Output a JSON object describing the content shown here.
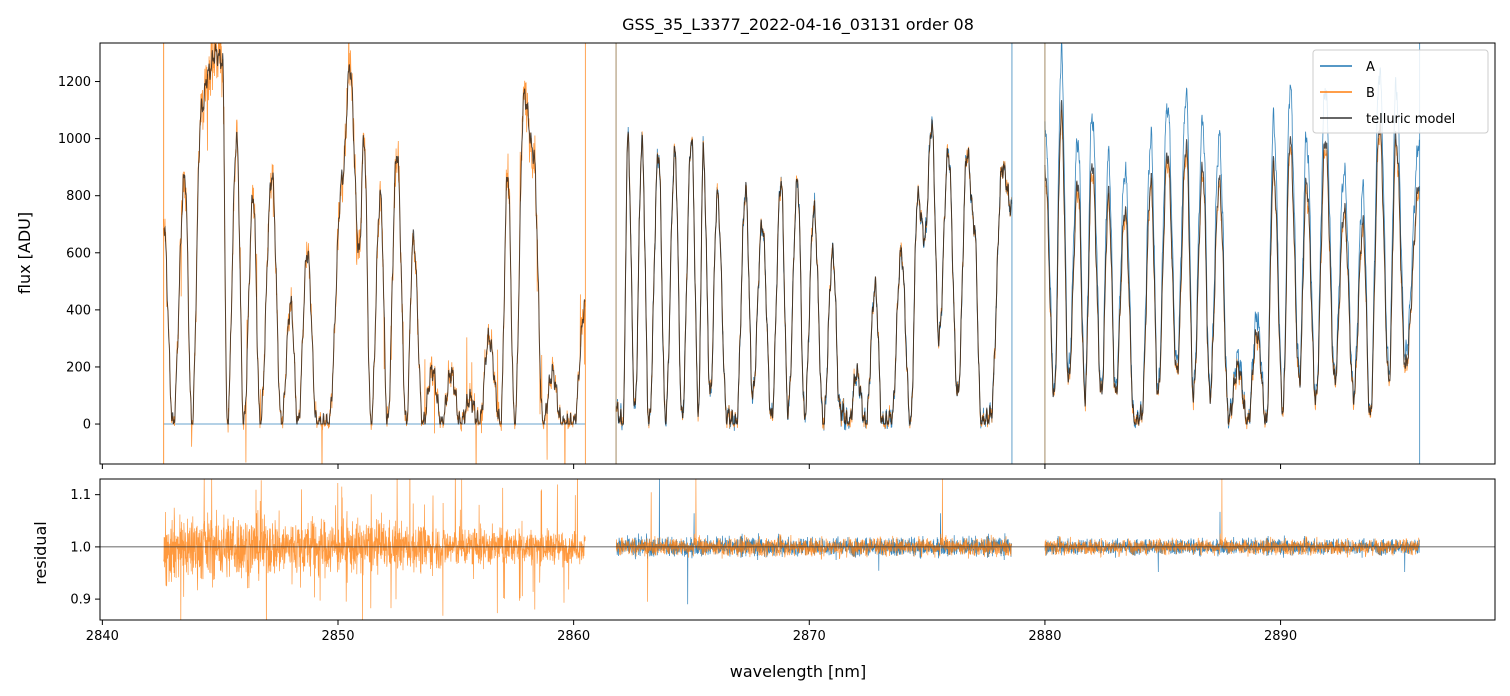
{
  "chart_data": [
    {
      "type": "line",
      "panel": "top",
      "title": "GSS_35_L3377_2022-04-16_03131  order 08",
      "xlabel": "",
      "ylabel": "flux [ADU]",
      "xlim": [
        2839.9,
        2899.1
      ],
      "ylim": [
        -140,
        1335
      ],
      "x_ticks": [
        2840,
        2850,
        2860,
        2870,
        2880,
        2890
      ],
      "y_ticks": [
        0,
        200,
        400,
        600,
        800,
        1000,
        1200
      ],
      "y_tick_labels": [
        "0",
        "200",
        "400",
        "600",
        "800",
        "1000",
        "1200"
      ],
      "grid": false,
      "legend": "top-right",
      "legend_entries": [
        "A",
        "B",
        "telluric model"
      ],
      "colors": {
        "A": "#1f77b4",
        "B": "#ff7f0e",
        "telluric model": "#333333"
      },
      "segments": [
        {
          "x_start": 2842.6,
          "x_end": 2860.5,
          "A_zero_baseline": true,
          "model": [
            [
              2842.6,
              700
            ],
            [
              2843.0,
              0
            ],
            [
              2843.5,
              870
            ],
            [
              2843.8,
              0
            ],
            [
              2844.2,
              1100
            ],
            [
              2844.5,
              1230
            ],
            [
              2844.8,
              1300
            ],
            [
              2845.1,
              1270
            ],
            [
              2845.3,
              0
            ],
            [
              2845.7,
              1000
            ],
            [
              2846.0,
              0
            ],
            [
              2846.4,
              800
            ],
            [
              2846.7,
              0
            ],
            [
              2847.2,
              870
            ],
            [
              2847.6,
              0
            ],
            [
              2848.0,
              420
            ],
            [
              2848.3,
              0
            ],
            [
              2848.7,
              600
            ],
            [
              2849.1,
              0
            ],
            [
              2849.6,
              0
            ],
            [
              2850.2,
              870
            ],
            [
              2850.5,
              1250
            ],
            [
              2850.9,
              600
            ],
            [
              2851.1,
              1000
            ],
            [
              2851.4,
              0
            ],
            [
              2851.8,
              800
            ],
            [
              2852.1,
              0
            ],
            [
              2852.5,
              950
            ],
            [
              2852.9,
              0
            ],
            [
              2853.2,
              650
            ],
            [
              2853.6,
              0
            ],
            [
              2854.0,
              190
            ],
            [
              2854.4,
              0
            ],
            [
              2854.8,
              180
            ],
            [
              2855.2,
              0
            ],
            [
              2855.6,
              90
            ],
            [
              2856.0,
              0
            ],
            [
              2856.4,
              300
            ],
            [
              2856.9,
              0
            ],
            [
              2857.2,
              880
            ],
            [
              2857.5,
              0
            ],
            [
              2857.9,
              1150
            ],
            [
              2858.3,
              950
            ],
            [
              2858.7,
              0
            ],
            [
              2859.1,
              180
            ],
            [
              2859.5,
              0
            ],
            [
              2860.0,
              0
            ],
            [
              2860.5,
              420
            ]
          ]
        },
        {
          "x_start": 2861.8,
          "x_end": 2878.6,
          "model": [
            [
              2861.8,
              50
            ],
            [
              2862.1,
              0
            ],
            [
              2862.3,
              1000
            ],
            [
              2862.6,
              50
            ],
            [
              2862.9,
              980
            ],
            [
              2863.2,
              0
            ],
            [
              2863.6,
              950
            ],
            [
              2863.9,
              20
            ],
            [
              2864.3,
              950
            ],
            [
              2864.6,
              20
            ],
            [
              2865.0,
              1000
            ],
            [
              2865.3,
              50
            ],
            [
              2865.5,
              950
            ],
            [
              2865.8,
              100
            ],
            [
              2866.1,
              800
            ],
            [
              2866.5,
              30
            ],
            [
              2866.9,
              0
            ],
            [
              2867.3,
              820
            ],
            [
              2867.6,
              100
            ],
            [
              2868.0,
              700
            ],
            [
              2868.4,
              20
            ],
            [
              2868.8,
              850
            ],
            [
              2869.1,
              50
            ],
            [
              2869.5,
              850
            ],
            [
              2869.8,
              30
            ],
            [
              2870.2,
              750
            ],
            [
              2870.6,
              0
            ],
            [
              2871.0,
              600
            ],
            [
              2871.3,
              50
            ],
            [
              2871.7,
              0
            ],
            [
              2872.0,
              180
            ],
            [
              2872.4,
              0
            ],
            [
              2872.8,
              480
            ],
            [
              2873.1,
              0
            ],
            [
              2873.5,
              20
            ],
            [
              2873.9,
              600
            ],
            [
              2874.3,
              0
            ],
            [
              2874.6,
              800
            ],
            [
              2874.9,
              650
            ],
            [
              2875.2,
              1050
            ],
            [
              2875.5,
              300
            ],
            [
              2875.9,
              950
            ],
            [
              2876.3,
              100
            ],
            [
              2876.7,
              950
            ],
            [
              2877.0,
              700
            ],
            [
              2877.3,
              0
            ],
            [
              2877.7,
              30
            ],
            [
              2878.2,
              900
            ],
            [
              2878.6,
              750
            ]
          ]
        },
        {
          "x_start": 2880.0,
          "x_end": 2895.9,
          "model": [
            [
              2880.0,
              900
            ],
            [
              2880.4,
              100
            ],
            [
              2880.7,
              1100
            ],
            [
              2881.0,
              150
            ],
            [
              2881.4,
              850
            ],
            [
              2881.7,
              100
            ],
            [
              2882.0,
              920
            ],
            [
              2882.4,
              100
            ],
            [
              2882.7,
              800
            ],
            [
              2883.0,
              100
            ],
            [
              2883.4,
              750
            ],
            [
              2883.8,
              0
            ],
            [
              2884.1,
              30
            ],
            [
              2884.5,
              850
            ],
            [
              2884.8,
              100
            ],
            [
              2885.2,
              950
            ],
            [
              2885.6,
              180
            ],
            [
              2886.0,
              980
            ],
            [
              2886.3,
              100
            ],
            [
              2886.7,
              900
            ],
            [
              2887.0,
              100
            ],
            [
              2887.4,
              850
            ],
            [
              2887.8,
              20
            ],
            [
              2888.2,
              200
            ],
            [
              2888.6,
              0
            ],
            [
              2889.0,
              320
            ],
            [
              2889.4,
              0
            ],
            [
              2889.7,
              900
            ],
            [
              2890.1,
              50
            ],
            [
              2890.4,
              1000
            ],
            [
              2890.8,
              150
            ],
            [
              2891.1,
              850
            ],
            [
              2891.5,
              80
            ],
            [
              2891.9,
              1000
            ],
            [
              2892.3,
              150
            ],
            [
              2892.7,
              750
            ],
            [
              2893.1,
              100
            ],
            [
              2893.5,
              700
            ],
            [
              2893.8,
              20
            ],
            [
              2894.2,
              1050
            ],
            [
              2894.6,
              150
            ],
            [
              2894.9,
              1000
            ],
            [
              2895.3,
              200
            ],
            [
              2895.9,
              850
            ]
          ]
        }
      ]
    },
    {
      "type": "line",
      "panel": "bottom",
      "title": "",
      "xlabel": "wavelength [nm]",
      "ylabel": "residual",
      "xlim": [
        2839.9,
        2899.1
      ],
      "ylim": [
        0.86,
        1.13
      ],
      "x_ticks": [
        2840,
        2850,
        2860,
        2870,
        2880,
        2890
      ],
      "x_tick_labels": [
        "2840",
        "2850",
        "2860",
        "2870",
        "2880",
        "2890"
      ],
      "y_ticks": [
        0.9,
        1.0,
        1.1
      ],
      "y_tick_labels": [
        "0.9",
        "1.0",
        "1.1"
      ],
      "reference_line": 1.0,
      "grid": false,
      "segments": [
        {
          "x_start": 2842.6,
          "x_end": 2860.5,
          "B_spread_start": 0.12,
          "B_spread_end": 0.05
        },
        {
          "x_start": 2861.8,
          "x_end": 2878.6,
          "A_spread": 0.03,
          "B_spread": 0.03
        },
        {
          "x_start": 2880.0,
          "x_end": 2895.9,
          "A_spread": 0.025,
          "B_spread": 0.025
        }
      ]
    }
  ]
}
